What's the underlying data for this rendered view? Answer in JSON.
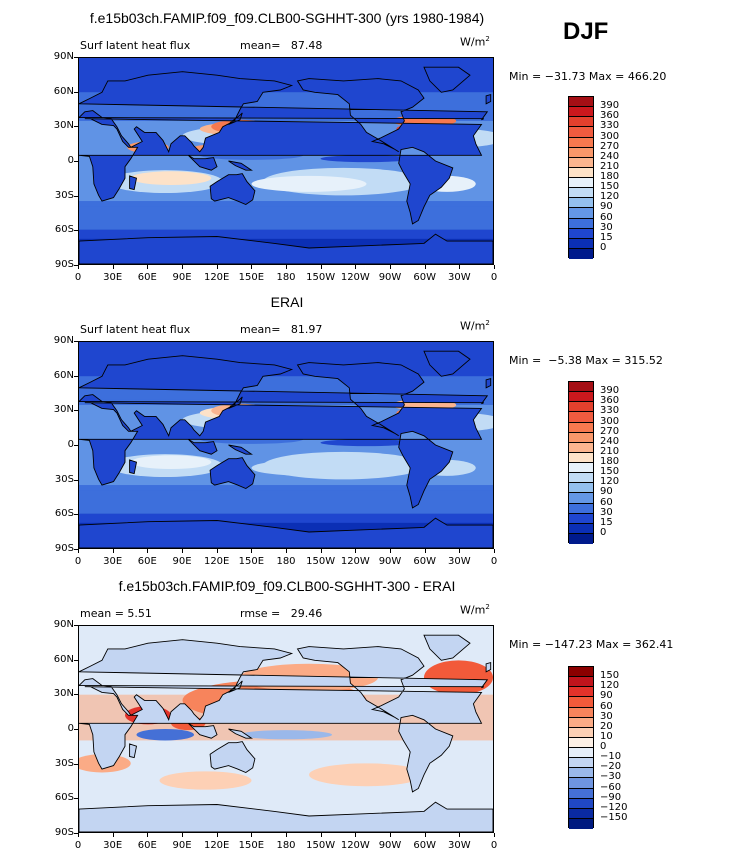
{
  "season": "DJF",
  "panels": [
    {
      "id": "model",
      "title": "f.e15b03ch.FAMIP.f09_f09.CLB00-SGHHT-300 (yrs 1980-1984)",
      "left_label": "Surf latent heat flux",
      "stat1": "mean=   87.48",
      "stat2": "",
      "units": "W/m",
      "units_sup": "2",
      "minmax": "Min = −31.73 Max = 466.20",
      "colorbar_labels": [
        "390",
        "360",
        "330",
        "300",
        "270",
        "240",
        "210",
        "180",
        "150",
        "120",
        "90",
        "60",
        "30",
        "15",
        "0"
      ],
      "colorbar_colors": [
        "#a50f15",
        "#cb181d",
        "#e3402d",
        "#f05b3f",
        "#f7794f",
        "#f9976a",
        "#fbb58f",
        "#fde2c8",
        "#e7f1fa",
        "#c2dcf5",
        "#94c0ee",
        "#6497e6",
        "#3d6fdc",
        "#1f46cf",
        "#0b2fb5",
        "#001a8c"
      ],
      "palette": "full"
    },
    {
      "id": "obs",
      "title": "ERAI",
      "left_label": "Surf latent heat flux",
      "stat1": "mean=   81.97",
      "stat2": "",
      "units": "W/m",
      "units_sup": "2",
      "minmax": "Min =  −5.38 Max = 315.52",
      "colorbar_labels": [
        "390",
        "360",
        "330",
        "300",
        "270",
        "240",
        "210",
        "180",
        "150",
        "120",
        "90",
        "60",
        "30",
        "15",
        "0"
      ],
      "colorbar_colors": [
        "#a50f15",
        "#cb181d",
        "#e3402d",
        "#f05b3f",
        "#f7794f",
        "#f9976a",
        "#fbb58f",
        "#fde2c8",
        "#e7f1fa",
        "#c2dcf5",
        "#94c0ee",
        "#6497e6",
        "#3d6fdc",
        "#1f46cf",
        "#0b2fb5",
        "#001a8c"
      ],
      "palette": "full"
    },
    {
      "id": "diff",
      "title": "f.e15b03ch.FAMIP.f09_f09.CLB00-SGHHT-300 - ERAI",
      "left_label": "mean =    5.51",
      "stat1": "rmse =   29.46",
      "stat2": "",
      "units": "W/m",
      "units_sup": "2",
      "minmax": "Min = −147.23 Max = 362.41",
      "colorbar_labels": [
        "150",
        "120",
        "90",
        "60",
        "30",
        "20",
        "10",
        "0",
        "−10",
        "−20",
        "−30",
        "−60",
        "−90",
        "−120",
        "−150"
      ],
      "colorbar_colors": [
        "#8b0000",
        "#c0141c",
        "#e3322a",
        "#f25a3a",
        "#f7845c",
        "#fbab86",
        "#fdd0b5",
        "#fdf0e6",
        "#e6eef9",
        "#c3d5f2",
        "#9ab8ea",
        "#6f95e0",
        "#4570d6",
        "#2048c4",
        "#0a2aa2",
        "#001a80"
      ],
      "palette": "diff"
    }
  ],
  "lat_labels": [
    "90N",
    "60N",
    "30N",
    "0",
    "30S",
    "60S",
    "90S"
  ],
  "lon_labels": [
    "0",
    "30E",
    "60E",
    "90E",
    "120E",
    "150E",
    "180",
    "150W",
    "120W",
    "90W",
    "60W",
    "30W",
    "0"
  ]
}
